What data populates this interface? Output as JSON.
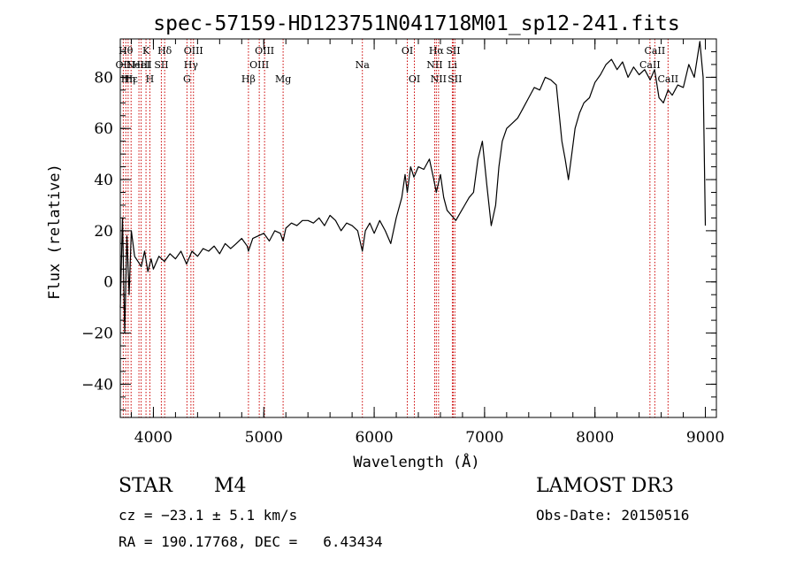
{
  "colors": {
    "axis": "#000000",
    "line_marker": "#cc0000",
    "background": "#ffffff"
  },
  "chart_data": {
    "type": "line",
    "title": "spec-57159-HD123751N041718M01_sp12-241.fits",
    "xlabel": "Wavelength (Å)",
    "ylabel": "Flux (relative)",
    "xlim": [
      3700,
      9100
    ],
    "ylim": [
      -53,
      95
    ],
    "x_ticks": [
      4000,
      5000,
      6000,
      7000,
      8000,
      9000
    ],
    "x_tick_labels": [
      "4000",
      "5000",
      "6000",
      "7000",
      "8000",
      "9000"
    ],
    "y_ticks": [
      -40,
      -20,
      0,
      20,
      40,
      60,
      80
    ],
    "y_tick_labels": [
      "−40",
      "−20",
      "0",
      "20",
      "40",
      "60",
      "80"
    ],
    "x_minor_step": 200,
    "y_minor_step": 5,
    "series": [
      {
        "name": "spectrum",
        "x": [
          3700,
          3720,
          3740,
          3760,
          3780,
          3800,
          3830,
          3860,
          3890,
          3920,
          3950,
          3980,
          4000,
          4050,
          4100,
          4150,
          4200,
          4250,
          4300,
          4350,
          4400,
          4450,
          4500,
          4550,
          4600,
          4650,
          4700,
          4750,
          4800,
          4850,
          4861,
          4900,
          4950,
          5000,
          5050,
          5100,
          5150,
          5175,
          5200,
          5250,
          5300,
          5350,
          5400,
          5450,
          5500,
          5550,
          5600,
          5650,
          5700,
          5750,
          5800,
          5850,
          5893,
          5920,
          5960,
          6000,
          6050,
          6100,
          6150,
          6200,
          6250,
          6280,
          6300,
          6330,
          6360,
          6400,
          6450,
          6500,
          6540,
          6563,
          6600,
          6630,
          6660,
          6700,
          6740,
          6780,
          6820,
          6860,
          6900,
          6940,
          6980,
          7020,
          7060,
          7100,
          7130,
          7160,
          7200,
          7250,
          7300,
          7350,
          7400,
          7450,
          7500,
          7550,
          7600,
          7650,
          7700,
          7730,
          7760,
          7790,
          7820,
          7860,
          7900,
          7950,
          8000,
          8050,
          8100,
          8150,
          8200,
          8250,
          8300,
          8350,
          8400,
          8450,
          8500,
          8540,
          8580,
          8620,
          8662,
          8700,
          8750,
          8800,
          8850,
          8900,
          8950,
          8980,
          9000
        ],
        "y": [
          -10,
          25,
          -20,
          18,
          -5,
          20,
          10,
          8,
          6,
          12,
          4,
          9,
          5,
          10,
          8,
          11,
          9,
          12,
          7,
          12,
          10,
          13,
          12,
          14,
          11,
          15,
          13,
          15,
          17,
          14,
          12,
          17,
          18,
          19,
          16,
          20,
          19,
          16,
          21,
          23,
          22,
          24,
          24,
          23,
          25,
          22,
          26,
          24,
          20,
          23,
          22,
          20,
          12,
          20,
          23,
          19,
          24,
          20,
          15,
          25,
          33,
          42,
          35,
          45,
          41,
          45,
          44,
          48,
          40,
          35,
          42,
          33,
          28,
          26,
          24,
          27,
          30,
          33,
          35,
          48,
          55,
          38,
          22,
          30,
          45,
          55,
          60,
          62,
          64,
          68,
          72,
          76,
          75,
          80,
          79,
          77,
          55,
          48,
          40,
          50,
          60,
          66,
          70,
          72,
          78,
          81,
          85,
          87,
          83,
          86,
          80,
          84,
          81,
          83,
          79,
          83,
          72,
          70,
          75,
          73,
          77,
          76,
          85,
          80,
          94,
          80,
          22
        ]
      }
    ],
    "line_markers": [
      {
        "x": 3727,
        "label": "OII",
        "row": 1
      },
      {
        "x": 3750,
        "label": "Hθ",
        "row": 0
      },
      {
        "x": 3771,
        "label": "Hη",
        "row": 2
      },
      {
        "x": 3798,
        "label": "Hε",
        "row": 2
      },
      {
        "x": 3869,
        "label": "NeIII",
        "row": 1
      },
      {
        "x": 3889,
        "label": "HeI",
        "row": 1
      },
      {
        "x": 3933,
        "label": "K",
        "row": 0
      },
      {
        "x": 3968,
        "label": "H",
        "row": 2
      },
      {
        "x": 4072,
        "label": "SII",
        "row": 1
      },
      {
        "x": 4102,
        "label": "Hδ",
        "row": 0
      },
      {
        "x": 4304,
        "label": "G",
        "row": 2
      },
      {
        "x": 4340,
        "label": "Hγ",
        "row": 1
      },
      {
        "x": 4363,
        "label": "OIII",
        "row": 0
      },
      {
        "x": 4861,
        "label": "Hβ",
        "row": 2
      },
      {
        "x": 4959,
        "label": "OIII",
        "row": 1
      },
      {
        "x": 5007,
        "label": "OIII",
        "row": 0
      },
      {
        "x": 5175,
        "label": "Mg",
        "row": 2
      },
      {
        "x": 5893,
        "label": "Na",
        "row": 1
      },
      {
        "x": 6300,
        "label": "OI",
        "row": 0
      },
      {
        "x": 6364,
        "label": "OI",
        "row": 2
      },
      {
        "x": 6548,
        "label": "NII",
        "row": 1
      },
      {
        "x": 6563,
        "label": "Hα",
        "row": 0
      },
      {
        "x": 6583,
        "label": "NII",
        "row": 2
      },
      {
        "x": 6708,
        "label": "Li",
        "row": 1
      },
      {
        "x": 6716,
        "label": "SII",
        "row": 0
      },
      {
        "x": 6731,
        "label": "SII",
        "row": 2
      },
      {
        "x": 8498,
        "label": "CaII",
        "row": 1
      },
      {
        "x": 8542,
        "label": "CaII",
        "row": 0
      },
      {
        "x": 8662,
        "label": "CaII",
        "row": 2
      }
    ]
  },
  "info": {
    "object_class": "STAR",
    "subclass": "M4",
    "survey": "LAMOST DR3",
    "redshift": "cz = −23.1 ± 5.1 km/s",
    "obs_date": "Obs-Date: 20150516",
    "coordinates": "RA = 190.17768, DEC =   6.43434"
  }
}
